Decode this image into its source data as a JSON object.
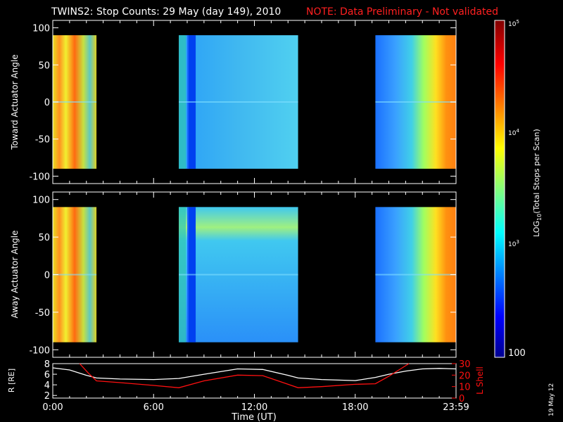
{
  "title": {
    "main": "TWINS2: Stop Counts: 29 May (day 149), 2010",
    "note": "NOTE: Data Preliminary - Not validated"
  },
  "date_stamp": "19 May 12",
  "colors": {
    "note": "#ff2020",
    "lshell": "#ff1010",
    "radius": "#ffffff",
    "frame": "#ffffff"
  },
  "chart_data": [
    {
      "type": "heatmap",
      "name": "toward-panel",
      "ylabel": "Toward Actuator Angle",
      "ylim": [
        -110,
        110
      ],
      "yticks": [
        "100",
        "50",
        "0",
        "-50",
        "-100"
      ],
      "data_yrange": [
        -90,
        90
      ],
      "segments": [
        {
          "start_hr": 0.0,
          "end_hr": 2.6,
          "level": "high"
        },
        {
          "start_hr": 7.5,
          "end_hr": 14.6,
          "level": "low"
        },
        {
          "start_hr": 19.2,
          "end_hr": 24.0,
          "level": "high"
        }
      ]
    },
    {
      "type": "heatmap",
      "name": "away-panel",
      "ylabel": "Away Actuator Angle",
      "ylim": [
        -110,
        110
      ],
      "yticks": [
        "100",
        "50",
        "0",
        "-50",
        "-100"
      ],
      "data_yrange": [
        -90,
        90
      ],
      "segments": [
        {
          "start_hr": 0.0,
          "end_hr": 2.6,
          "level": "high"
        },
        {
          "start_hr": 7.5,
          "end_hr": 14.6,
          "level": "low"
        },
        {
          "start_hr": 19.2,
          "end_hr": 24.0,
          "level": "high"
        }
      ]
    },
    {
      "type": "line",
      "name": "orbit-panel",
      "ylabel_left": "R [RE]",
      "ylabel_right": "L Shell",
      "xlabel": "Time (UT)",
      "xticks": [
        "0:00",
        "6:00",
        "12:00",
        "18:00",
        "23:59"
      ],
      "xtick_hours": [
        0,
        6,
        12,
        18,
        24
      ],
      "ylim_left": [
        1.5,
        8
      ],
      "ylim_right": [
        0,
        30
      ],
      "yticks_left": [
        "8",
        "6",
        "4",
        "2"
      ],
      "yticks_right": [
        "30",
        "20",
        "10",
        "0"
      ],
      "series": [
        {
          "name": "R",
          "axis": "left",
          "x": [
            0,
            1,
            2,
            2.6,
            4,
            6,
            7.5,
            9,
            11,
            12.5,
            14,
            14.6,
            16,
            18,
            19.2,
            20,
            21,
            22,
            23,
            24
          ],
          "values": [
            7.2,
            6.8,
            5.8,
            5.3,
            5.1,
            5.0,
            5.2,
            6.0,
            7.0,
            6.9,
            5.8,
            5.3,
            5.0,
            4.8,
            5.4,
            6.0,
            6.6,
            7.0,
            7.1,
            7.0
          ]
        },
        {
          "name": "L Shell",
          "axis": "right",
          "x": [
            1.6,
            2.1,
            2.6,
            4,
            6,
            7.5,
            9,
            11,
            12.5,
            14,
            14.6,
            16,
            18,
            19.2,
            20,
            21.2
          ],
          "values": [
            30,
            22,
            15,
            13.5,
            11,
            9,
            15,
            20,
            19.5,
            12,
            9,
            10,
            12,
            12.5,
            19,
            30
          ]
        }
      ]
    },
    {
      "type": "heatmap",
      "name": "colorbar",
      "label": "LOG10(Total Stops per Scan)",
      "tick_labels": {
        "t100": "100",
        "t1000": "10",
        "t1000_exp": "3",
        "t10000": "10",
        "t10000_exp": "4",
        "t100000": "10",
        "t100000_exp": "5"
      },
      "range": [
        100,
        100000
      ]
    }
  ]
}
